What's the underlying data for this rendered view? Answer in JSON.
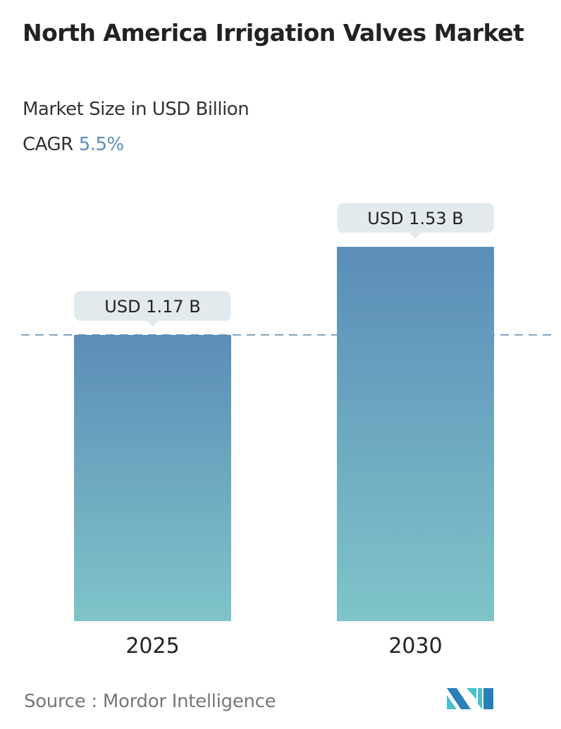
{
  "header": {
    "title": "North America Irrigation Valves Market",
    "subtitle": "Market Size in USD Billion",
    "cagr_label": "CAGR",
    "cagr_value": "5.5%"
  },
  "chart_data": {
    "type": "bar",
    "title": "North America Irrigation Valves Market",
    "ylabel": "Market Size in USD Billion",
    "categories": [
      "2025",
      "2030"
    ],
    "values": [
      1.17,
      1.53
    ],
    "data_labels": [
      "USD 1.17 B",
      "USD 1.53 B"
    ],
    "ylim": [
      0,
      1.7
    ],
    "grid": false,
    "reference_line": {
      "value": 1.17,
      "style": "dashed"
    },
    "colors": {
      "bar_top": "#5b8db8",
      "bar_bottom": "#7fc4c9",
      "label_bg": "#e2eaee",
      "ref_line": "#5b86a8"
    }
  },
  "footer": {
    "source": "Source :  Mordor Intelligence",
    "logo_text": "Mordor Intelligence"
  }
}
